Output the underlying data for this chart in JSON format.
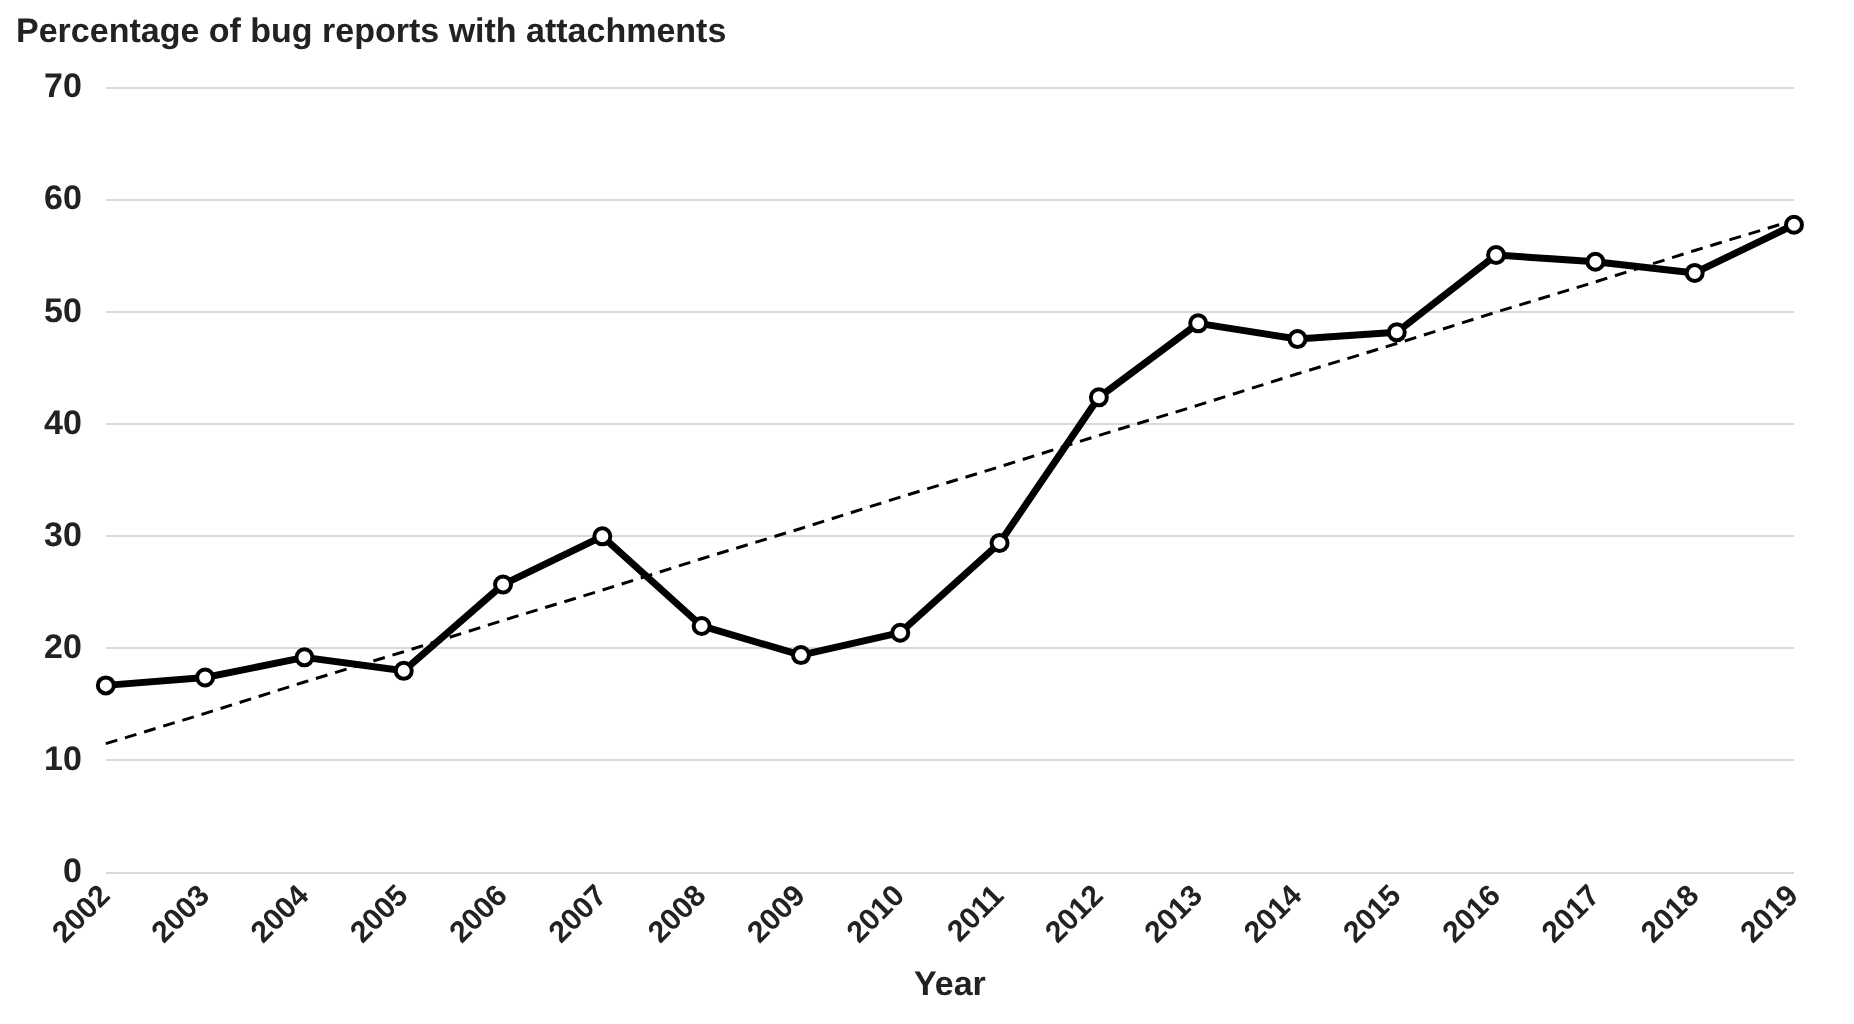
{
  "chart_data": {
    "type": "line",
    "title": "Percentage of bug reports with attachments",
    "xlabel": "Year",
    "categories": [
      "2002",
      "2003",
      "2004",
      "2005",
      "2006",
      "2007",
      "2008",
      "2009",
      "2010",
      "2011",
      "2012",
      "2013",
      "2014",
      "2015",
      "2016",
      "2017",
      "2018",
      "2019"
    ],
    "series": [
      {
        "color": "#000000",
        "marker": "circle",
        "line_style": "solid",
        "values": [
          16.7,
          17.4,
          19.2,
          18.0,
          25.7,
          30.0,
          22.0,
          19.4,
          21.4,
          29.4,
          42.4,
          49.0,
          47.6,
          48.2,
          55.1,
          54.5,
          53.5,
          57.8
        ]
      },
      {
        "color": "#000000",
        "marker": "none",
        "line_style": "dashed",
        "values": [
          11.5,
          14.2,
          17.0,
          19.7,
          22.5,
          25.2,
          28.0,
          30.7,
          33.5,
          36.2,
          39.0,
          41.7,
          44.5,
          47.2,
          50.0,
          52.7,
          55.5,
          58.2
        ]
      }
    ],
    "ylim": [
      0,
      70
    ],
    "yticks": [
      0,
      10,
      20,
      30,
      40,
      50,
      60,
      70
    ],
    "grid": "y",
    "legend": false
  }
}
